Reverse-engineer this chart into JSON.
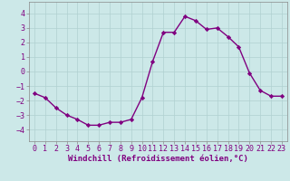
{
  "x": [
    0,
    1,
    2,
    3,
    4,
    5,
    6,
    7,
    8,
    9,
    10,
    11,
    12,
    13,
    14,
    15,
    16,
    17,
    18,
    19,
    20,
    21,
    22,
    23
  ],
  "y": [
    -1.5,
    -1.8,
    -2.5,
    -3.0,
    -3.3,
    -3.7,
    -3.7,
    -3.5,
    -3.5,
    -3.3,
    -1.8,
    0.7,
    2.7,
    2.7,
    3.8,
    3.5,
    2.9,
    3.0,
    2.4,
    1.7,
    -0.1,
    -1.3,
    -1.7,
    -1.7
  ],
  "line_color": "#800080",
  "marker": "D",
  "marker_size": 2.2,
  "bg_color": "#cce8e8",
  "grid_color": "#b0d0d0",
  "xlabel": "Windchill (Refroidissement éolien,°C)",
  "xlabel_fontsize": 6.5,
  "xlim": [
    -0.5,
    23.5
  ],
  "ylim": [
    -4.8,
    4.8
  ],
  "yticks": [
    -4,
    -3,
    -2,
    -1,
    0,
    1,
    2,
    3,
    4
  ],
  "xticks": [
    0,
    1,
    2,
    3,
    4,
    5,
    6,
    7,
    8,
    9,
    10,
    11,
    12,
    13,
    14,
    15,
    16,
    17,
    18,
    19,
    20,
    21,
    22,
    23
  ],
  "tick_fontsize": 6,
  "line_width": 1.0,
  "spine_color": "#888888"
}
